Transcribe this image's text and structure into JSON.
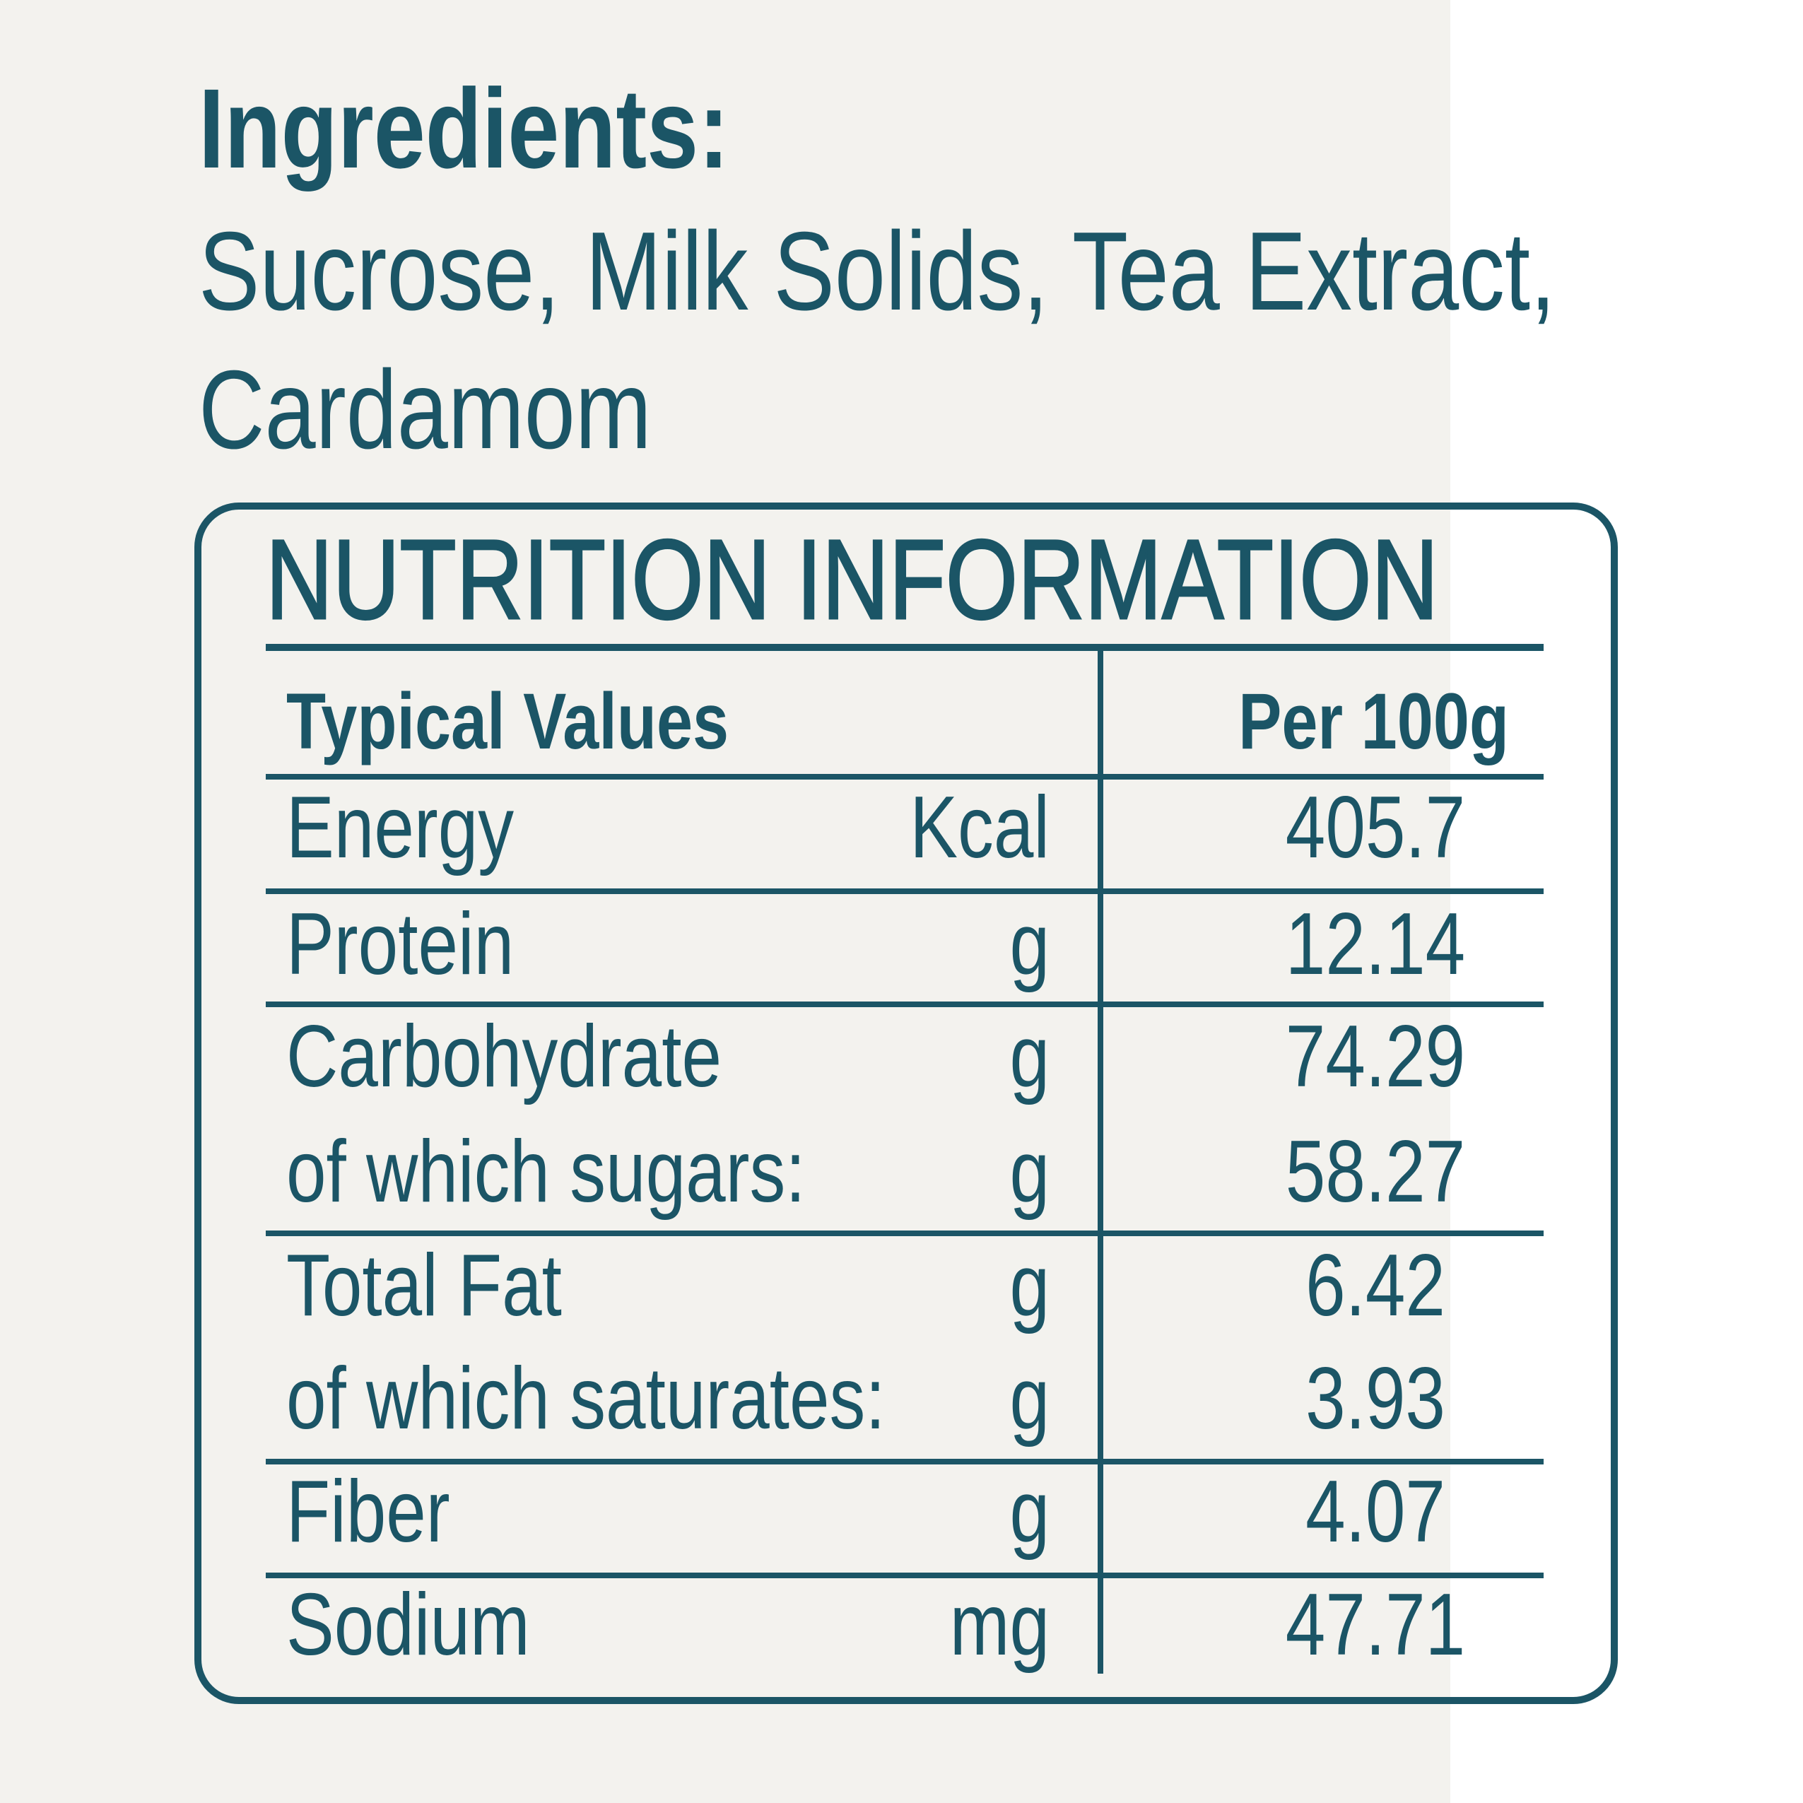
{
  "ingredients": {
    "heading": "Ingredients:",
    "lines": [
      "Sucrose, Milk Solids, Tea Extract,",
      "Cardamom"
    ]
  },
  "nutrition": {
    "title": "NUTRITION INFORMATION",
    "header": [
      "Typical Values",
      "Per 100g"
    ],
    "rows": [
      {
        "nutrient": "Energy",
        "unit": "Kcal",
        "value": "405.7"
      },
      {
        "nutrient": "Protein",
        "unit": "g",
        "value": "12.14"
      },
      {
        "nutrient": "Carbohydrate",
        "unit": "g",
        "value": "74.29"
      },
      {
        "nutrient": "of which sugars:",
        "unit": "g",
        "value": "58.27"
      },
      {
        "nutrient": "Total Fat",
        "unit": "g",
        "value": "6.42"
      },
      {
        "nutrient": "of which saturates:",
        "unit": "g",
        "value": "3.93"
      },
      {
        "nutrient": "Fiber",
        "unit": "g",
        "value": "4.07"
      },
      {
        "nutrient": "Sodium",
        "unit": "mg",
        "value": "47.71"
      }
    ]
  }
}
